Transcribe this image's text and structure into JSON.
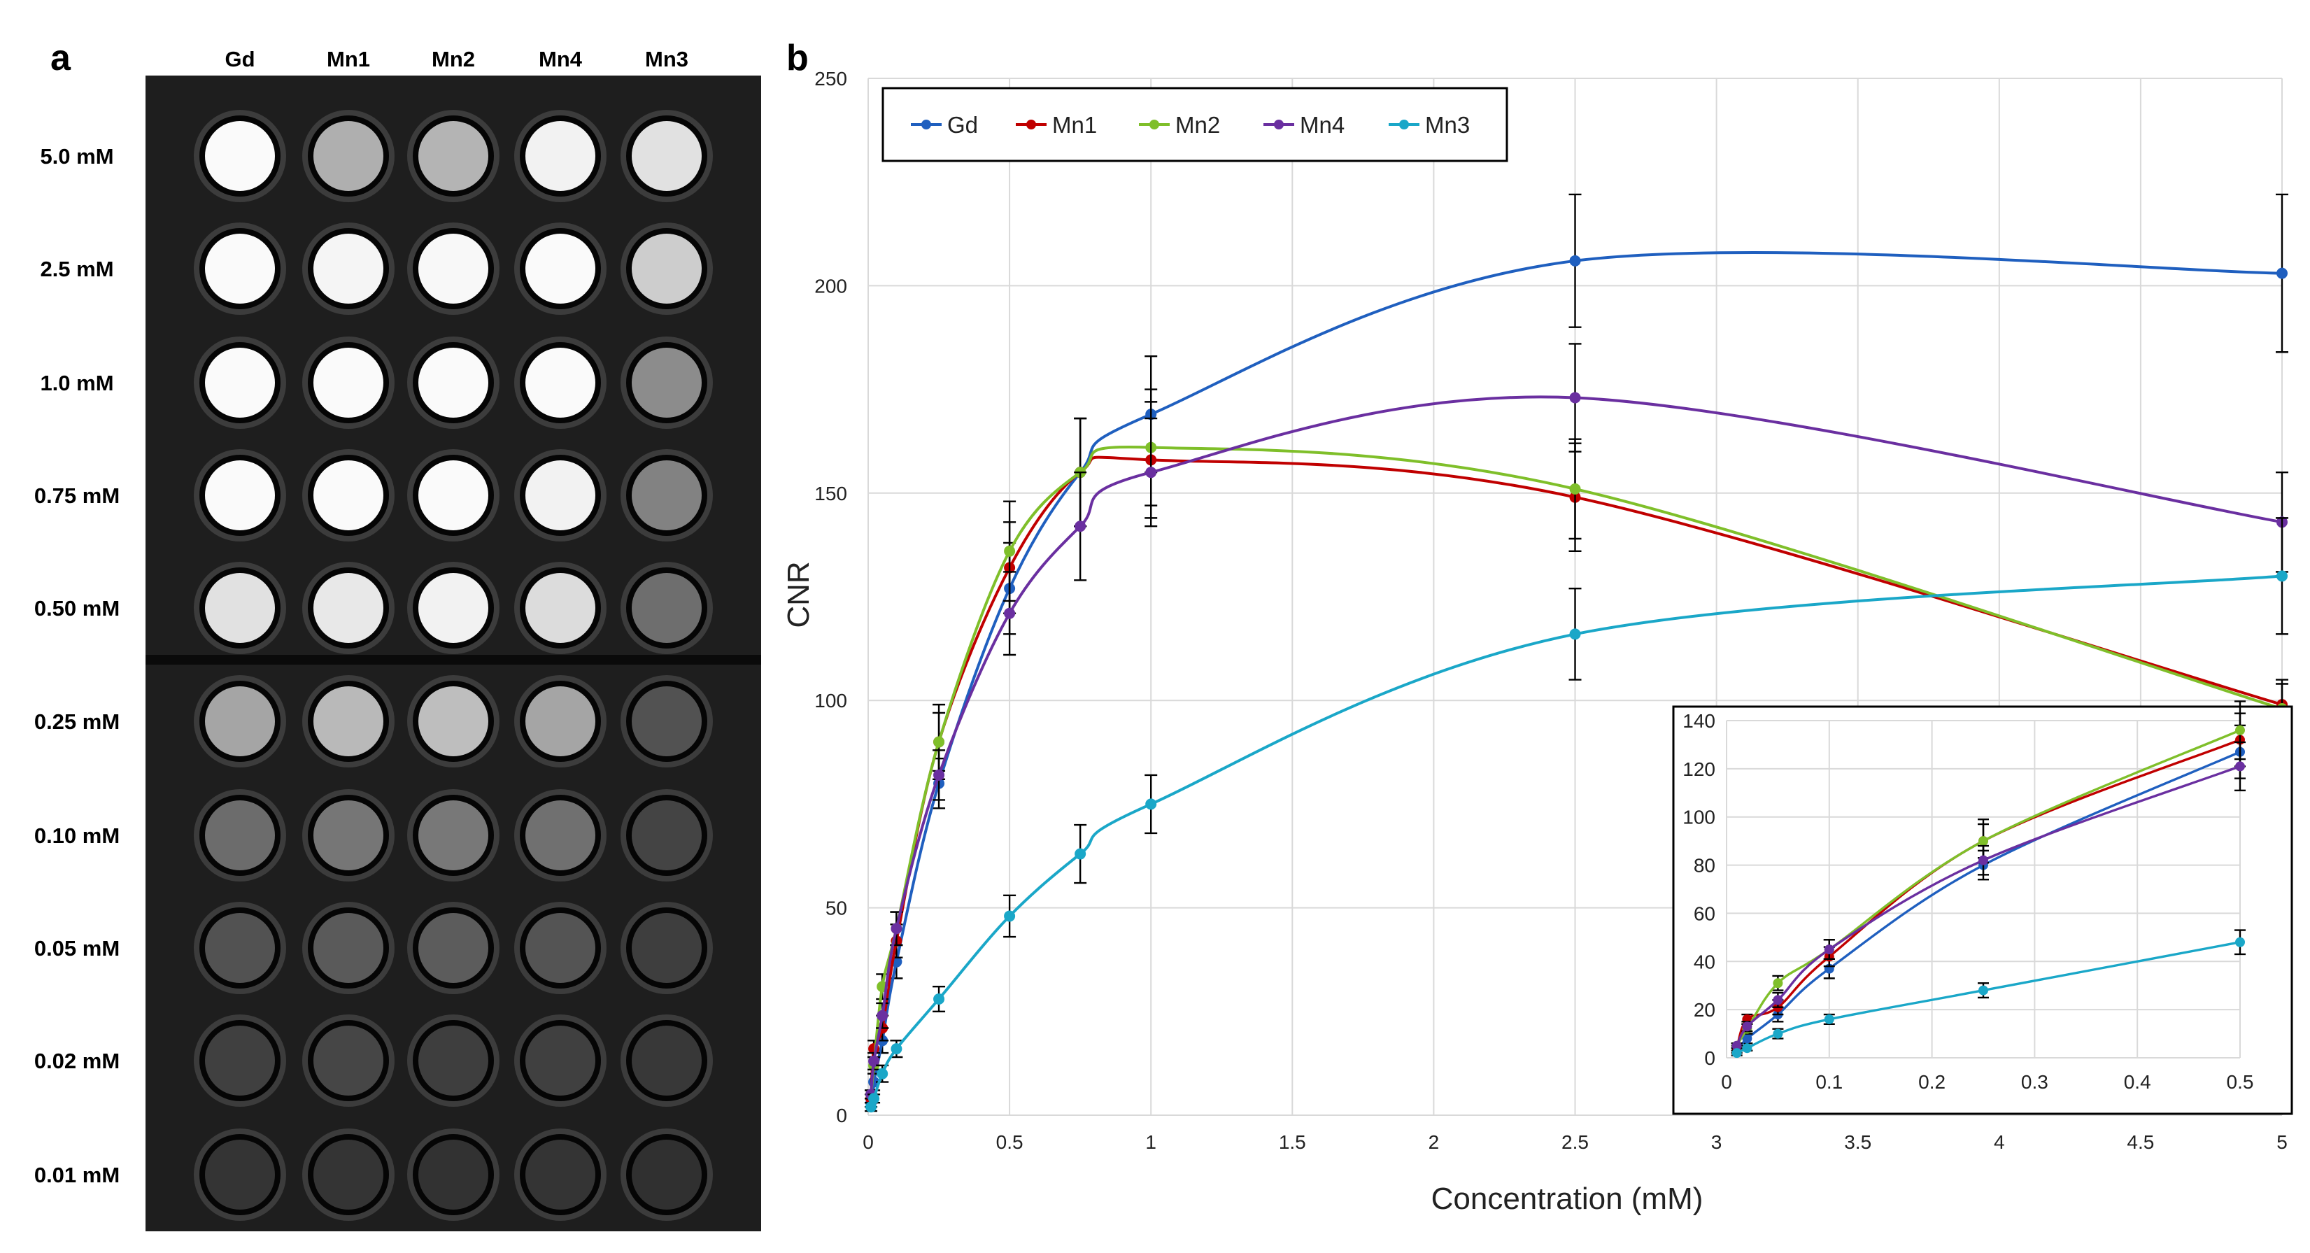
{
  "panel_a": {
    "letter": "a",
    "columns": [
      "Gd",
      "Mn1",
      "Mn2",
      "Mn4",
      "Mn3"
    ],
    "rows": [
      "5.0 mM",
      "2.5 mM",
      "1.0 mM",
      "0.75 mM",
      "0.50 mM",
      "0.25 mM",
      "0.10 mM",
      "0.05 mM",
      "0.02 mM",
      "0.01 mM"
    ],
    "intensity": [
      [
        250,
        175,
        180,
        242,
        225
      ],
      [
        250,
        245,
        248,
        250,
        205
      ],
      [
        250,
        250,
        250,
        250,
        140
      ],
      [
        250,
        250,
        250,
        242,
        130
      ],
      [
        225,
        232,
        242,
        220,
        110
      ],
      [
        165,
        185,
        190,
        165,
        82
      ],
      [
        108,
        118,
        120,
        112,
        68
      ],
      [
        82,
        90,
        92,
        84,
        62
      ],
      [
        64,
        70,
        62,
        64,
        56
      ],
      [
        52,
        52,
        50,
        52,
        48
      ]
    ]
  },
  "chart_data": [
    {
      "type": "line",
      "panel": "b",
      "title": "",
      "xlabel": "Concentration (mM)",
      "ylabel": "CNR",
      "xlim": [
        0,
        5
      ],
      "ylim": [
        0,
        250
      ],
      "xticks": [
        "0",
        "0.5",
        "1",
        "1.5",
        "2",
        "2.5",
        "3",
        "3.5",
        "4",
        "4.5",
        "5"
      ],
      "yticks": [
        "0",
        "50",
        "100",
        "150",
        "200",
        "250"
      ],
      "grid": true,
      "legend_position": "top-left",
      "x": [
        0.01,
        0.02,
        0.05,
        0.1,
        0.25,
        0.5,
        0.75,
        1.0,
        2.5,
        5.0
      ],
      "series": [
        {
          "name": "Gd",
          "color": "#1f5fbf",
          "values": [
            3,
            8,
            18,
            37,
            80,
            127,
            155,
            169,
            206,
            203
          ],
          "errors": [
            1,
            2,
            3,
            4,
            6,
            11,
            13,
            14,
            16,
            19
          ]
        },
        {
          "name": "Mn1",
          "color": "#c00000",
          "values": [
            4,
            16,
            21,
            42,
            90,
            132,
            155,
            158,
            149,
            99
          ],
          "errors": [
            1,
            2,
            3,
            4,
            7,
            11,
            13,
            14,
            13,
            6
          ]
        },
        {
          "name": "Mn2",
          "color": "#7fbf2a",
          "values": [
            5,
            12,
            31,
            45,
            90,
            136,
            155,
            161,
            151,
            98
          ],
          "errors": [
            1,
            2,
            3,
            4,
            9,
            12,
            13,
            14,
            12,
            6
          ]
        },
        {
          "name": "Mn4",
          "color": "#6a2fa0",
          "values": [
            5,
            13,
            24,
            45,
            82,
            121,
            142,
            155,
            173,
            143
          ],
          "errors": [
            1,
            2,
            3,
            4,
            6,
            10,
            13,
            13,
            13,
            12
          ]
        },
        {
          "name": "Mn3",
          "color": "#1aa7c8",
          "values": [
            2,
            4,
            10,
            16,
            28,
            48,
            63,
            75,
            116,
            130
          ],
          "errors": [
            1,
            1,
            2,
            2,
            3,
            5,
            7,
            7,
            11,
            14
          ]
        }
      ]
    },
    {
      "type": "line",
      "panel": "b-inset",
      "xlim": [
        0,
        0.5
      ],
      "ylim": [
        0,
        140
      ],
      "xticks": [
        "0",
        "0.1",
        "0.2",
        "0.3",
        "0.4",
        "0.5"
      ],
      "yticks": [
        "0",
        "20",
        "40",
        "60",
        "80",
        "100",
        "120",
        "140"
      ],
      "grid": true,
      "x": [
        0.01,
        0.02,
        0.05,
        0.1,
        0.25,
        0.5
      ],
      "series": [
        {
          "name": "Gd",
          "color": "#1f5fbf",
          "values": [
            3,
            8,
            18,
            37,
            80,
            127
          ],
          "errors": [
            1,
            2,
            3,
            4,
            6,
            11
          ]
        },
        {
          "name": "Mn1",
          "color": "#c00000",
          "values": [
            4,
            16,
            21,
            42,
            90,
            132
          ],
          "errors": [
            1,
            2,
            3,
            4,
            7,
            11
          ]
        },
        {
          "name": "Mn2",
          "color": "#7fbf2a",
          "values": [
            5,
            12,
            31,
            45,
            90,
            136
          ],
          "errors": [
            1,
            2,
            3,
            4,
            9,
            12
          ]
        },
        {
          "name": "Mn4",
          "color": "#6a2fa0",
          "values": [
            5,
            13,
            24,
            45,
            82,
            121
          ],
          "errors": [
            1,
            2,
            3,
            4,
            6,
            10
          ]
        },
        {
          "name": "Mn3",
          "color": "#1aa7c8",
          "values": [
            2,
            4,
            10,
            16,
            28,
            48
          ],
          "errors": [
            1,
            1,
            2,
            2,
            3,
            5
          ]
        }
      ]
    }
  ],
  "panel_b": {
    "letter": "b"
  }
}
